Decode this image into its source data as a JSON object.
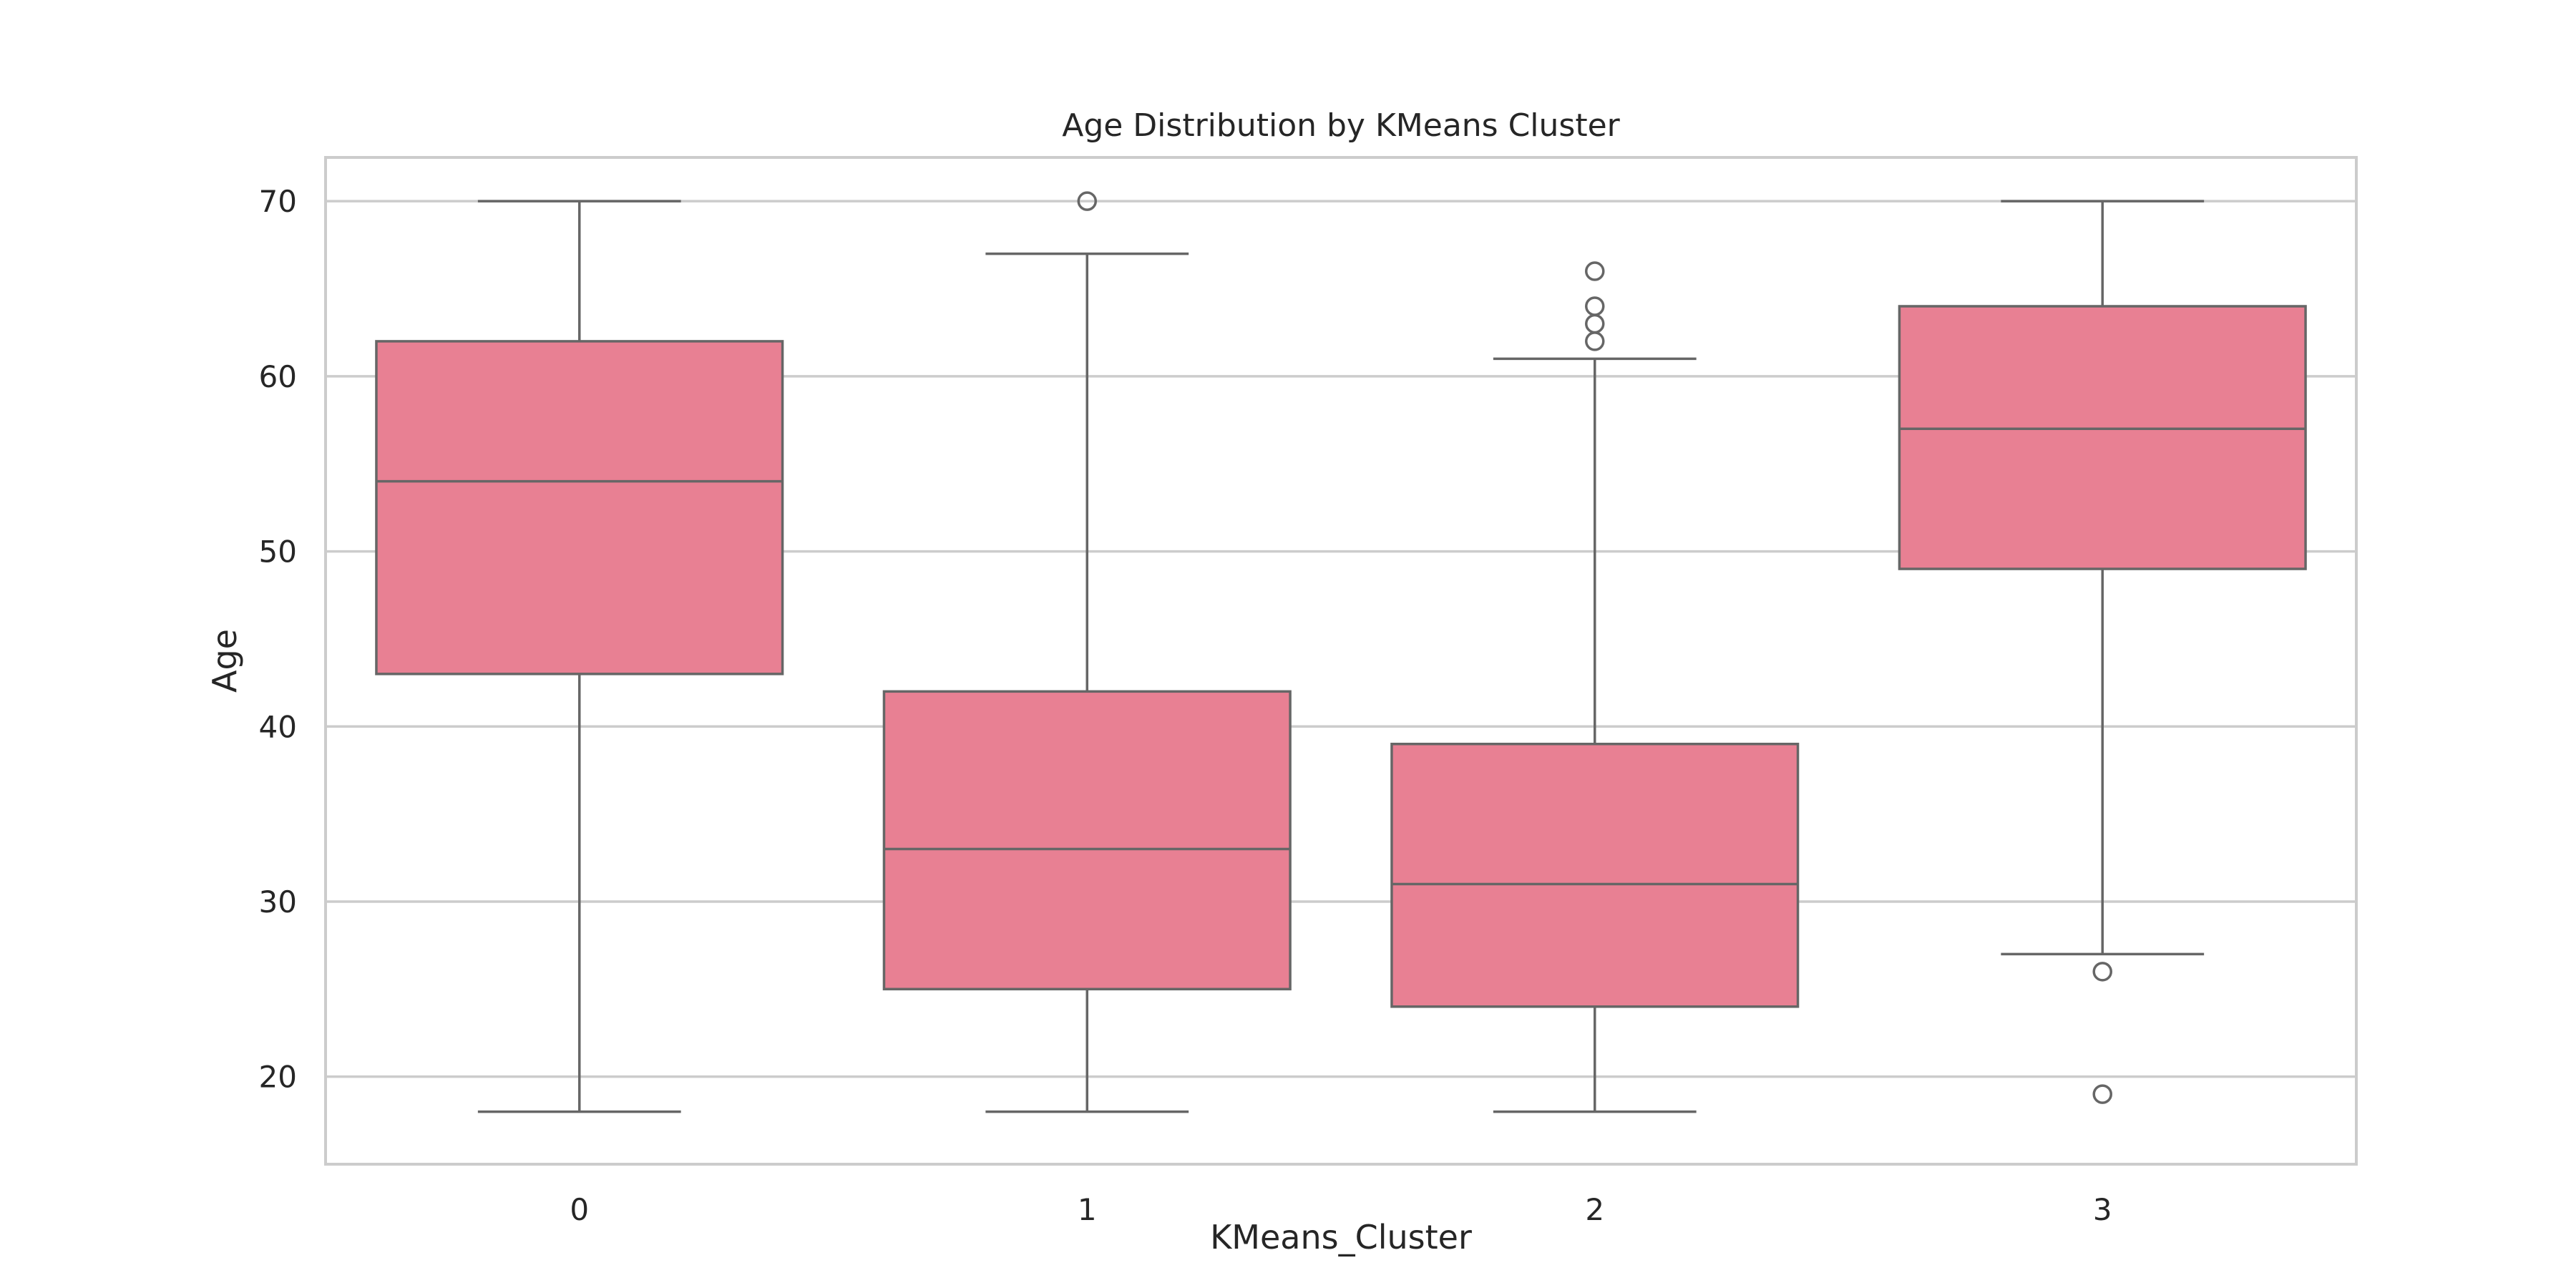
{
  "chart_data": {
    "type": "box",
    "title": "Age Distribution by KMeans Cluster",
    "xlabel": "KMeans_Cluster",
    "ylabel": "Age",
    "categories": [
      "0",
      "1",
      "2",
      "3"
    ],
    "ylim": [
      15,
      72.5
    ],
    "yticks": [
      20,
      30,
      40,
      50,
      60,
      70
    ],
    "grid": true,
    "legend": "none",
    "colors": {
      "box_fill": "#e88093",
      "box_edge": "#666666",
      "grid": "#cccccc",
      "frame": "#cccccc"
    },
    "boxes": [
      {
        "category": "0",
        "whisker_low": 18,
        "q1": 43,
        "median": 54,
        "q3": 62,
        "whisker_high": 70,
        "outliers": []
      },
      {
        "category": "1",
        "whisker_low": 18,
        "q1": 25,
        "median": 33,
        "q3": 42,
        "whisker_high": 67,
        "outliers": [
          70
        ]
      },
      {
        "category": "2",
        "whisker_low": 18,
        "q1": 24,
        "median": 31,
        "q3": 39,
        "whisker_high": 61,
        "outliers": [
          62,
          63,
          64,
          66
        ]
      },
      {
        "category": "3",
        "whisker_low": 27,
        "q1": 49,
        "median": 57,
        "q3": 64,
        "whisker_high": 70,
        "outliers": [
          26,
          19
        ]
      }
    ]
  }
}
